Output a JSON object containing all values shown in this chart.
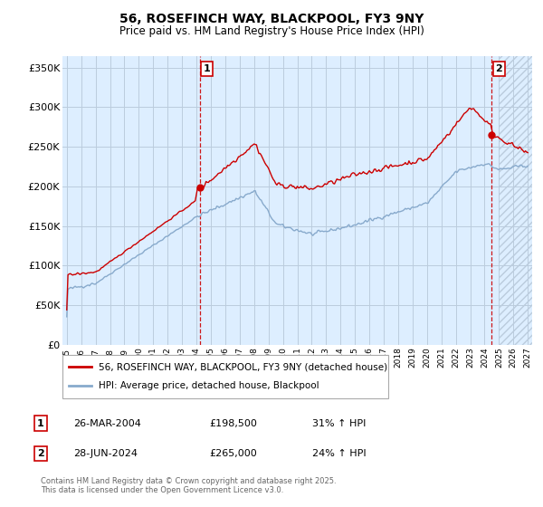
{
  "title": "56, ROSEFINCH WAY, BLACKPOOL, FY3 9NY",
  "subtitle": "Price paid vs. HM Land Registry's House Price Index (HPI)",
  "ylabel_ticks": [
    "£0",
    "£50K",
    "£100K",
    "£150K",
    "£200K",
    "£250K",
    "£300K",
    "£350K"
  ],
  "ytick_vals": [
    0,
    50000,
    100000,
    150000,
    200000,
    250000,
    300000,
    350000
  ],
  "ylim": [
    0,
    365000
  ],
  "xlim_start": 1994.7,
  "xlim_end": 2027.3,
  "line1_color": "#cc0000",
  "line2_color": "#88aacc",
  "plot_bg_color": "#ddeeff",
  "vline_color": "#cc0000",
  "marker1_x": 2004.23,
  "marker1_y": 198500,
  "marker2_x": 2024.49,
  "marker2_y": 265000,
  "legend_line1": "56, ROSEFINCH WAY, BLACKPOOL, FY3 9NY (detached house)",
  "legend_line2": "HPI: Average price, detached house, Blackpool",
  "annotation1_label": "1",
  "annotation1_date": "26-MAR-2004",
  "annotation1_price": "£198,500",
  "annotation1_hpi": "31% ↑ HPI",
  "annotation2_label": "2",
  "annotation2_date": "28-JUN-2024",
  "annotation2_price": "£265,000",
  "annotation2_hpi": "24% ↑ HPI",
  "copyright_text": "Contains HM Land Registry data © Crown copyright and database right 2025.\nThis data is licensed under the Open Government Licence v3.0.",
  "bg_color": "#ffffff",
  "grid_color": "#bbccdd",
  "hatch_start": 2025.0
}
